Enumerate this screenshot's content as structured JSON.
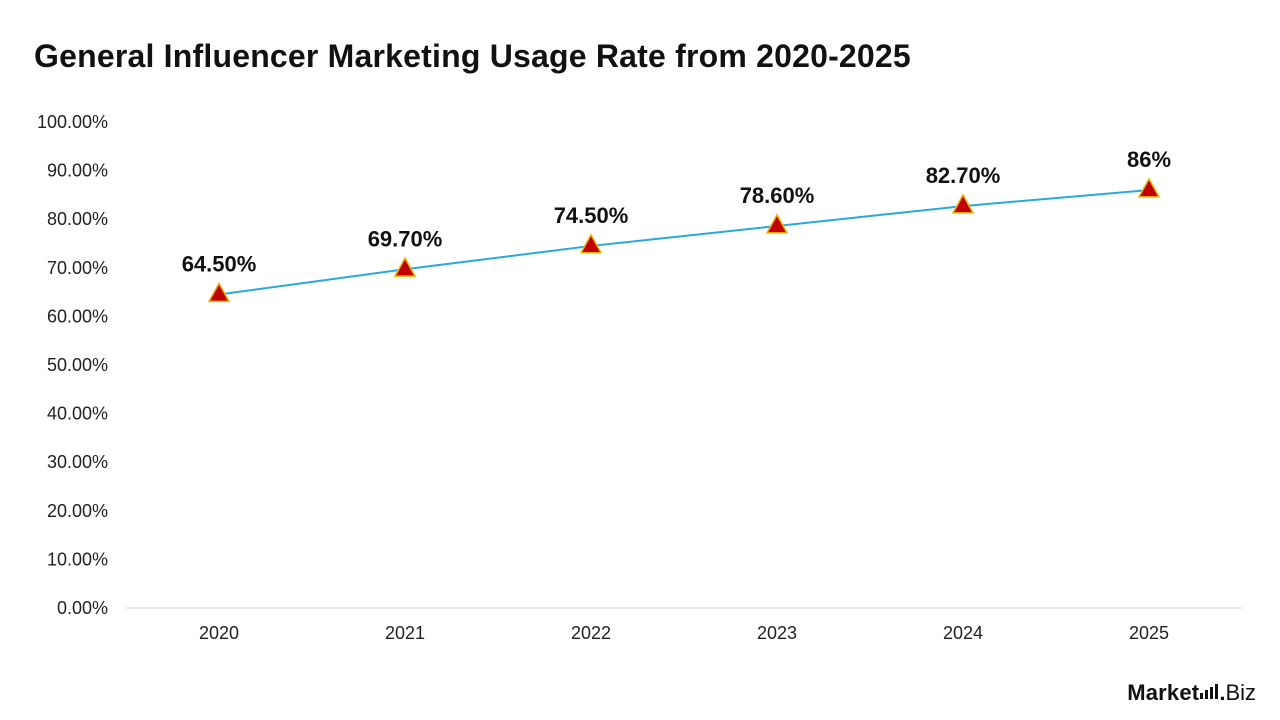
{
  "chart_data": {
    "type": "line",
    "title": "General Influencer Marketing Usage Rate from 2020-2025",
    "categories": [
      "2020",
      "2021",
      "2022",
      "2023",
      "2024",
      "2025"
    ],
    "series": [
      {
        "values": [
          64.5,
          69.7,
          74.5,
          78.6,
          82.7,
          86
        ],
        "labels": [
          "64.50%",
          "69.70%",
          "74.50%",
          "78.60%",
          "82.70%",
          "86%"
        ]
      }
    ],
    "ylim": [
      0,
      100
    ],
    "yticks": [
      "0.00%",
      "10.00%",
      "20.00%",
      "30.00%",
      "40.00%",
      "50.00%",
      "60.00%",
      "70.00%",
      "80.00%",
      "90.00%",
      "100.00%"
    ],
    "grid": false,
    "line_color": "#29a8e0",
    "marker": "triangle",
    "marker_fill": "#c00000",
    "marker_edge": "#f0b400"
  },
  "logo": {
    "word": "Market",
    "dot": ".",
    "suffix": "Biz"
  }
}
